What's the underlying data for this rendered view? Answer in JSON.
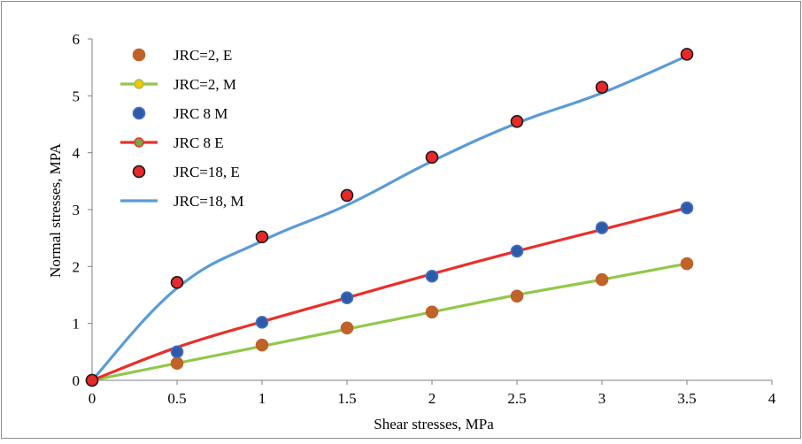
{
  "chart_data": {
    "type": "scatter",
    "title": "",
    "xlabel": "Shear stresses, MPa",
    "ylabel": "Normal stresses, MPA",
    "xlim": [
      0,
      4
    ],
    "ylim": [
      0,
      6
    ],
    "x_ticks": [
      "0",
      "0.5",
      "1",
      "1.5",
      "2",
      "2.5",
      "3",
      "3.5",
      "4"
    ],
    "y_ticks": [
      "0",
      "1",
      "2",
      "3",
      "4",
      "5",
      "6"
    ],
    "grid": false,
    "legend_position": "top-left",
    "series": [
      {
        "name": "JRC=2, E",
        "kind": "markers",
        "marker_color": "#C0632A",
        "marker_edge": "#C0632A",
        "x": [
          0,
          0.5,
          1,
          1.5,
          2,
          2.5,
          3,
          3.5
        ],
        "y": [
          0,
          0.3,
          0.62,
          0.92,
          1.2,
          1.48,
          1.77,
          2.05
        ]
      },
      {
        "name": "JRC=2, M",
        "kind": "line",
        "line_color": "#92C84A",
        "marker_color": "#FFC000",
        "x": [
          0,
          0.5,
          1,
          1.5,
          2,
          2.5,
          3,
          3.5
        ],
        "y": [
          0,
          0.3,
          0.6,
          0.9,
          1.2,
          1.5,
          1.77,
          2.05
        ]
      },
      {
        "name": "JRC 8 M",
        "kind": "markers",
        "marker_color": "#2E5AA8",
        "marker_edge": "#4472C4",
        "x": [
          0,
          0.5,
          1,
          1.5,
          2,
          2.5,
          3,
          3.5
        ],
        "y": [
          0,
          0.5,
          1.02,
          1.45,
          1.83,
          2.27,
          2.68,
          3.03
        ]
      },
      {
        "name": "JRC 8 E",
        "kind": "line",
        "line_color": "#E8302A",
        "marker_color": "#70AD47",
        "x": [
          0,
          0.5,
          1,
          1.5,
          2,
          2.5,
          3,
          3.5
        ],
        "y": [
          0,
          0.58,
          1.03,
          1.45,
          1.87,
          2.27,
          2.65,
          3.03
        ]
      },
      {
        "name": "JRC=18, E",
        "kind": "markers",
        "marker_color": "#E8282A",
        "marker_edge": "#1a1a1a",
        "x": [
          0,
          0.5,
          1,
          1.5,
          2,
          2.5,
          3,
          3.5
        ],
        "y": [
          0,
          1.72,
          2.52,
          3.25,
          3.92,
          4.55,
          5.15,
          5.73
        ]
      },
      {
        "name": "JRC=18, M",
        "kind": "line",
        "line_color": "#5B9BD5",
        "x": [
          0,
          0.5,
          1,
          1.5,
          2,
          2.5,
          3,
          3.5
        ],
        "y": [
          0,
          1.62,
          2.45,
          3.08,
          3.85,
          4.52,
          5.05,
          5.7
        ]
      }
    ]
  }
}
